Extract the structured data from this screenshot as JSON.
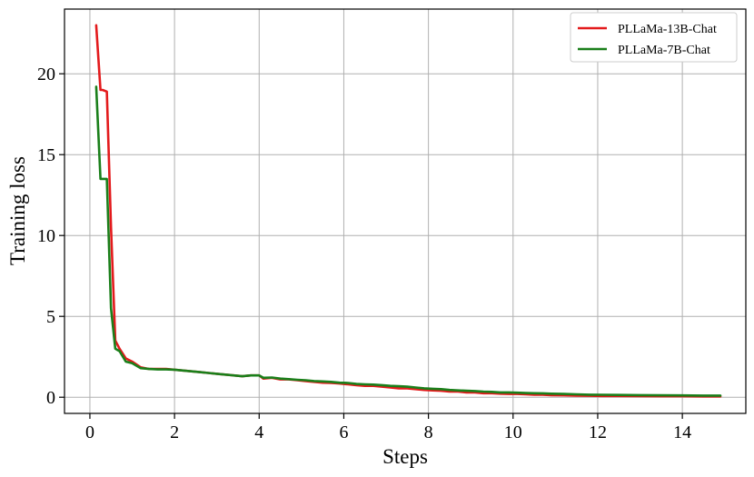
{
  "chart_data": {
    "type": "line",
    "title": "",
    "xlabel": "Steps",
    "ylabel": "Training loss",
    "xlim": [
      -0.6,
      15.5
    ],
    "ylim": [
      -1.0,
      24.0
    ],
    "xticks": [
      0,
      2,
      4,
      6,
      8,
      10,
      12,
      14
    ],
    "yticks": [
      0,
      5,
      10,
      15,
      20
    ],
    "grid": true,
    "legend_position": "top-right",
    "series": [
      {
        "name": "PLLaMa-13B-Chat",
        "color": "#e31a1c",
        "points": [
          [
            0.15,
            23.0
          ],
          [
            0.25,
            19.0
          ],
          [
            0.3,
            19.0
          ],
          [
            0.4,
            18.9
          ],
          [
            0.5,
            10.5
          ],
          [
            0.6,
            3.5
          ],
          [
            0.7,
            3.0
          ],
          [
            0.85,
            2.4
          ],
          [
            1.0,
            2.2
          ],
          [
            1.2,
            1.85
          ],
          [
            1.4,
            1.75
          ],
          [
            1.6,
            1.75
          ],
          [
            1.8,
            1.75
          ],
          [
            2.0,
            1.7
          ],
          [
            2.2,
            1.65
          ],
          [
            2.4,
            1.6
          ],
          [
            2.6,
            1.55
          ],
          [
            2.8,
            1.5
          ],
          [
            3.0,
            1.45
          ],
          [
            3.2,
            1.4
          ],
          [
            3.4,
            1.35
          ],
          [
            3.6,
            1.3
          ],
          [
            3.8,
            1.35
          ],
          [
            4.0,
            1.35
          ],
          [
            4.1,
            1.15
          ],
          [
            4.3,
            1.2
          ],
          [
            4.5,
            1.1
          ],
          [
            4.7,
            1.1
          ],
          [
            4.9,
            1.05
          ],
          [
            5.1,
            1.0
          ],
          [
            5.3,
            0.95
          ],
          [
            5.5,
            0.9
          ],
          [
            5.7,
            0.88
          ],
          [
            5.9,
            0.85
          ],
          [
            6.1,
            0.8
          ],
          [
            6.3,
            0.75
          ],
          [
            6.5,
            0.7
          ],
          [
            6.7,
            0.7
          ],
          [
            6.9,
            0.65
          ],
          [
            7.1,
            0.6
          ],
          [
            7.3,
            0.55
          ],
          [
            7.5,
            0.55
          ],
          [
            7.7,
            0.5
          ],
          [
            7.9,
            0.45
          ],
          [
            8.1,
            0.42
          ],
          [
            8.3,
            0.4
          ],
          [
            8.5,
            0.35
          ],
          [
            8.7,
            0.35
          ],
          [
            8.9,
            0.3
          ],
          [
            9.1,
            0.3
          ],
          [
            9.3,
            0.25
          ],
          [
            9.5,
            0.25
          ],
          [
            9.7,
            0.22
          ],
          [
            9.9,
            0.2
          ],
          [
            10.1,
            0.2
          ],
          [
            10.3,
            0.18
          ],
          [
            10.5,
            0.15
          ],
          [
            10.7,
            0.15
          ],
          [
            10.9,
            0.13
          ],
          [
            11.2,
            0.12
          ],
          [
            11.5,
            0.1
          ],
          [
            11.8,
            0.09
          ],
          [
            12.1,
            0.08
          ],
          [
            12.5,
            0.08
          ],
          [
            13.0,
            0.07
          ],
          [
            13.5,
            0.06
          ],
          [
            14.0,
            0.06
          ],
          [
            14.5,
            0.05
          ],
          [
            14.9,
            0.05
          ]
        ]
      },
      {
        "name": "PLLaMa-7B-Chat",
        "color": "#1a7f1a",
        "points": [
          [
            0.15,
            19.2
          ],
          [
            0.25,
            13.5
          ],
          [
            0.3,
            13.5
          ],
          [
            0.4,
            13.5
          ],
          [
            0.5,
            5.5
          ],
          [
            0.6,
            3.0
          ],
          [
            0.7,
            2.85
          ],
          [
            0.85,
            2.2
          ],
          [
            1.0,
            2.1
          ],
          [
            1.2,
            1.8
          ],
          [
            1.4,
            1.75
          ],
          [
            1.6,
            1.72
          ],
          [
            1.8,
            1.72
          ],
          [
            2.0,
            1.7
          ],
          [
            2.2,
            1.65
          ],
          [
            2.4,
            1.6
          ],
          [
            2.6,
            1.55
          ],
          [
            2.8,
            1.5
          ],
          [
            3.0,
            1.45
          ],
          [
            3.2,
            1.4
          ],
          [
            3.4,
            1.35
          ],
          [
            3.6,
            1.3
          ],
          [
            3.8,
            1.35
          ],
          [
            4.0,
            1.35
          ],
          [
            4.1,
            1.2
          ],
          [
            4.3,
            1.22
          ],
          [
            4.5,
            1.15
          ],
          [
            4.7,
            1.12
          ],
          [
            4.9,
            1.08
          ],
          [
            5.1,
            1.05
          ],
          [
            5.3,
            1.0
          ],
          [
            5.5,
            0.98
          ],
          [
            5.7,
            0.95
          ],
          [
            5.9,
            0.9
          ],
          [
            6.1,
            0.88
          ],
          [
            6.3,
            0.82
          ],
          [
            6.5,
            0.8
          ],
          [
            6.7,
            0.78
          ],
          [
            6.9,
            0.75
          ],
          [
            7.1,
            0.7
          ],
          [
            7.3,
            0.68
          ],
          [
            7.5,
            0.65
          ],
          [
            7.7,
            0.6
          ],
          [
            7.9,
            0.55
          ],
          [
            8.1,
            0.52
          ],
          [
            8.3,
            0.5
          ],
          [
            8.5,
            0.45
          ],
          [
            8.7,
            0.42
          ],
          [
            8.9,
            0.4
          ],
          [
            9.1,
            0.38
          ],
          [
            9.3,
            0.35
          ],
          [
            9.5,
            0.33
          ],
          [
            9.7,
            0.3
          ],
          [
            9.9,
            0.3
          ],
          [
            10.1,
            0.28
          ],
          [
            10.3,
            0.26
          ],
          [
            10.5,
            0.25
          ],
          [
            10.7,
            0.24
          ],
          [
            10.9,
            0.22
          ],
          [
            11.2,
            0.2
          ],
          [
            11.5,
            0.18
          ],
          [
            11.8,
            0.16
          ],
          [
            12.1,
            0.15
          ],
          [
            12.5,
            0.14
          ],
          [
            13.0,
            0.13
          ],
          [
            13.5,
            0.12
          ],
          [
            14.0,
            0.11
          ],
          [
            14.5,
            0.1
          ],
          [
            14.9,
            0.1
          ]
        ]
      }
    ]
  }
}
